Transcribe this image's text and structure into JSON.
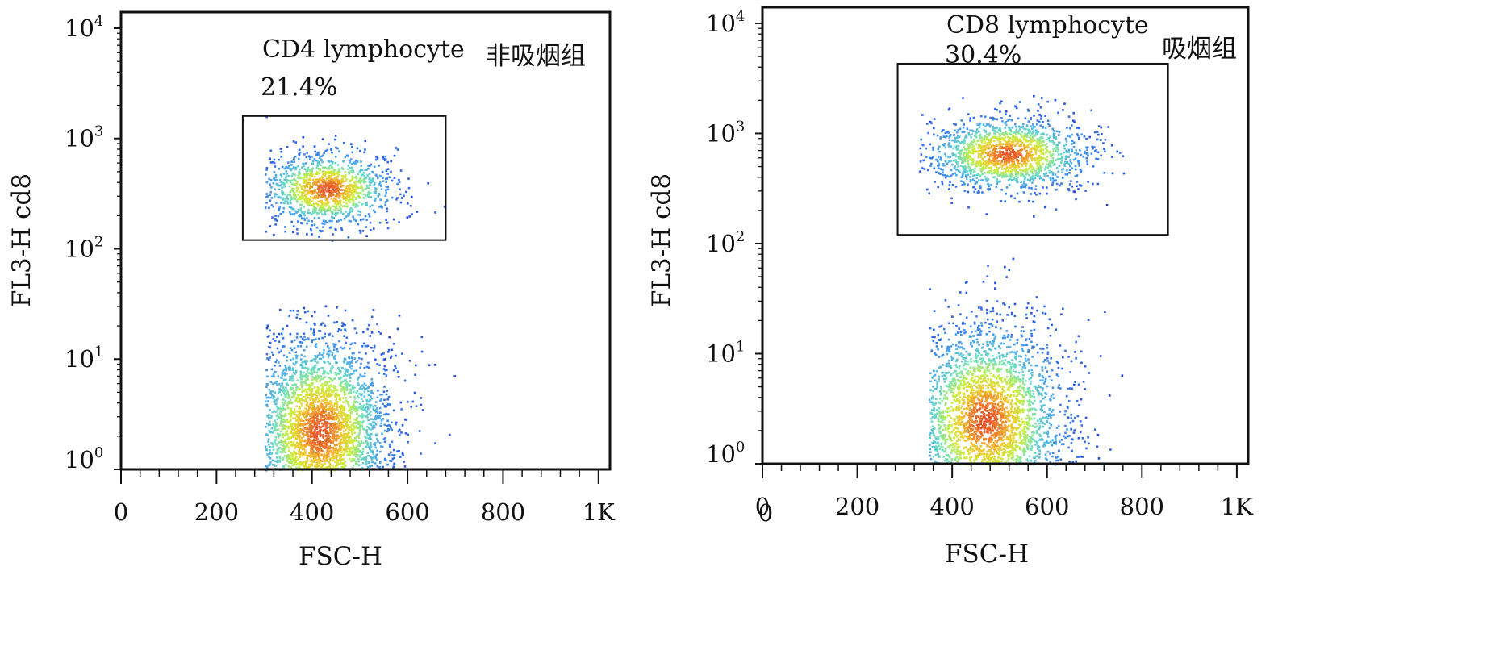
{
  "chart_data": [
    {
      "type": "scatter",
      "panel": "left",
      "xlabel": "FSC-H",
      "ylabel": "FL3-H cd8",
      "group_label": "非吸烟组",
      "x_ticks": [
        "0",
        "200",
        "400",
        "600",
        "800",
        "1K"
      ],
      "x_tick_values": [
        0,
        200,
        400,
        600,
        800,
        1000
      ],
      "y_ticks": [
        {
          "base": "10",
          "exp": "0"
        },
        {
          "base": "10",
          "exp": "1"
        },
        {
          "base": "10",
          "exp": "2"
        },
        {
          "base": "10",
          "exp": "3"
        },
        {
          "base": "10",
          "exp": "4"
        }
      ],
      "xlim": [
        0,
        1024
      ],
      "y_scale": "log",
      "ylim": [
        1,
        14000
      ],
      "gate": {
        "name": "CD4 lymphocyte",
        "percent": "21.4%",
        "x_range": [
          255,
          680
        ],
        "y_range": [
          120,
          1600
        ]
      },
      "populations": [
        {
          "label": "low",
          "x_center": 415,
          "y_center_log": 0.35,
          "x_spread": 75,
          "y_spread_log": 0.45,
          "x_range": [
            300,
            720
          ],
          "y_log_range": [
            0,
            1.5
          ],
          "count": 3600
        },
        {
          "label": "gated",
          "x_center": 430,
          "y_center_log": 2.55,
          "x_spread": 70,
          "y_spread_log": 0.17,
          "x_range": [
            300,
            720
          ],
          "y_log_range": [
            2.05,
            3.25
          ],
          "count": 1300
        }
      ],
      "colormap": [
        "#1d3fe0",
        "#4aa3ee",
        "#6fe0c0",
        "#c8f040",
        "#f2c630",
        "#e8502a"
      ]
    },
    {
      "type": "scatter",
      "panel": "right",
      "xlabel": "FSC-H",
      "ylabel": "FL3-H cd8",
      "group_label": "吸烟组",
      "x_ticks": [
        "0",
        "200",
        "400",
        "600",
        "800",
        "1K"
      ],
      "x_tick_values": [
        0,
        200,
        400,
        600,
        800,
        1000
      ],
      "x_tick_extra": "0",
      "y_ticks": [
        {
          "base": "10",
          "exp": "0"
        },
        {
          "base": "10",
          "exp": "1"
        },
        {
          "base": "10",
          "exp": "2"
        },
        {
          "base": "10",
          "exp": "3"
        },
        {
          "base": "10",
          "exp": "4"
        }
      ],
      "xlim": [
        0,
        1024
      ],
      "y_scale": "log",
      "ylim": [
        1,
        14000
      ],
      "gate": {
        "name": "CD8 lymphocyte",
        "percent": "30.4%",
        "x_range": [
          285,
          855
        ],
        "y_range": [
          120,
          4300
        ]
      },
      "populations": [
        {
          "label": "low",
          "x_center": 470,
          "y_center_log": 0.4,
          "x_spread": 85,
          "y_spread_log": 0.45,
          "x_range": [
            350,
            770
          ],
          "y_log_range": [
            0,
            1.9
          ],
          "count": 3200
        },
        {
          "label": "gated",
          "x_center": 515,
          "y_center_log": 2.82,
          "x_spread": 85,
          "y_spread_log": 0.17,
          "x_range": [
            330,
            770
          ],
          "y_log_range": [
            2.2,
            3.35
          ],
          "count": 1600
        }
      ],
      "colormap": [
        "#1d3fe0",
        "#4aa3ee",
        "#6fe0c0",
        "#c8f040",
        "#f2c630",
        "#e8502a"
      ]
    }
  ]
}
